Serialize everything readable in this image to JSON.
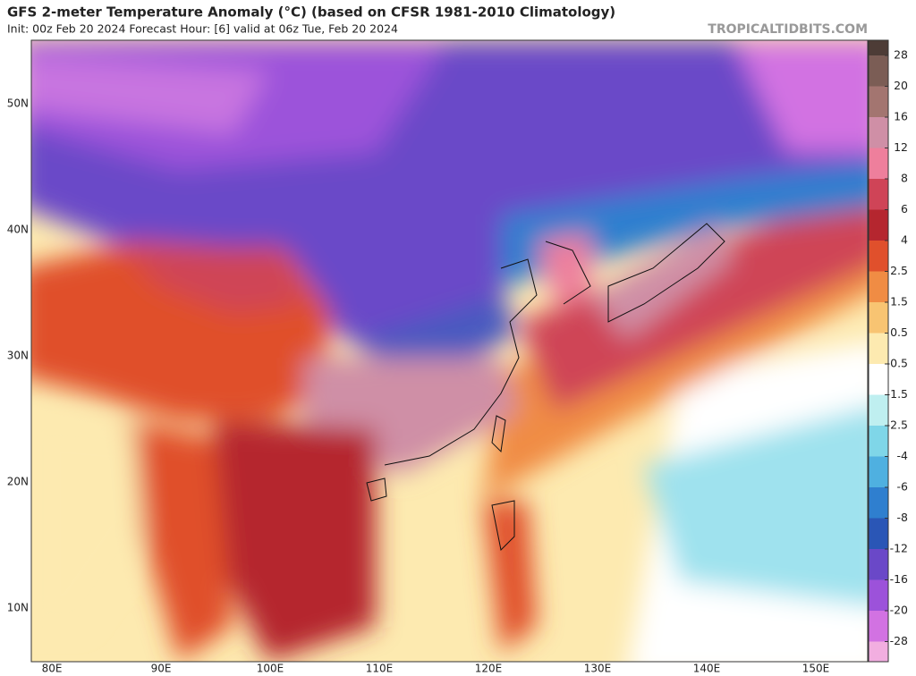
{
  "header": {
    "title": "GFS 2-meter Temperature Anomaly (°C) (based on CFSR 1981-2010 Climatology)",
    "subtitle": "Init: 00z Feb 20 2024   Forecast Hour: [6]   valid at 06z Tue, Feb 20 2024",
    "source": "TROPICALTIDBITS.COM"
  },
  "map": {
    "lat_labels": [
      "50N",
      "40N",
      "30N",
      "20N",
      "10N"
    ],
    "lon_labels": [
      "80E",
      "90E",
      "100E",
      "110E",
      "120E",
      "130E",
      "140E",
      "150E"
    ]
  },
  "colorbar": {
    "labels": [
      "28",
      "20",
      "16",
      "12",
      "8",
      "6",
      "4",
      "2.5",
      "1.5",
      "0.5",
      "-0.5",
      "-1.5",
      "-2.5",
      "-4",
      "-6",
      "-8",
      "-12",
      "-16",
      "-20",
      "-28"
    ],
    "colors": [
      "#4d3c36",
      "#7b5d55",
      "#a37570",
      "#cf8fa6",
      "#ee7f9c",
      "#cf4457",
      "#b5262f",
      "#e0502c",
      "#f08c44",
      "#f8c472",
      "#fdeab0",
      "#ffffff",
      "#bfeff0",
      "#7fd6e8",
      "#4fb0e0",
      "#2f7fcf",
      "#2a56b6",
      "#6a48c8",
      "#9c52da",
      "#d272e2",
      "#f2aee0"
    ]
  }
}
